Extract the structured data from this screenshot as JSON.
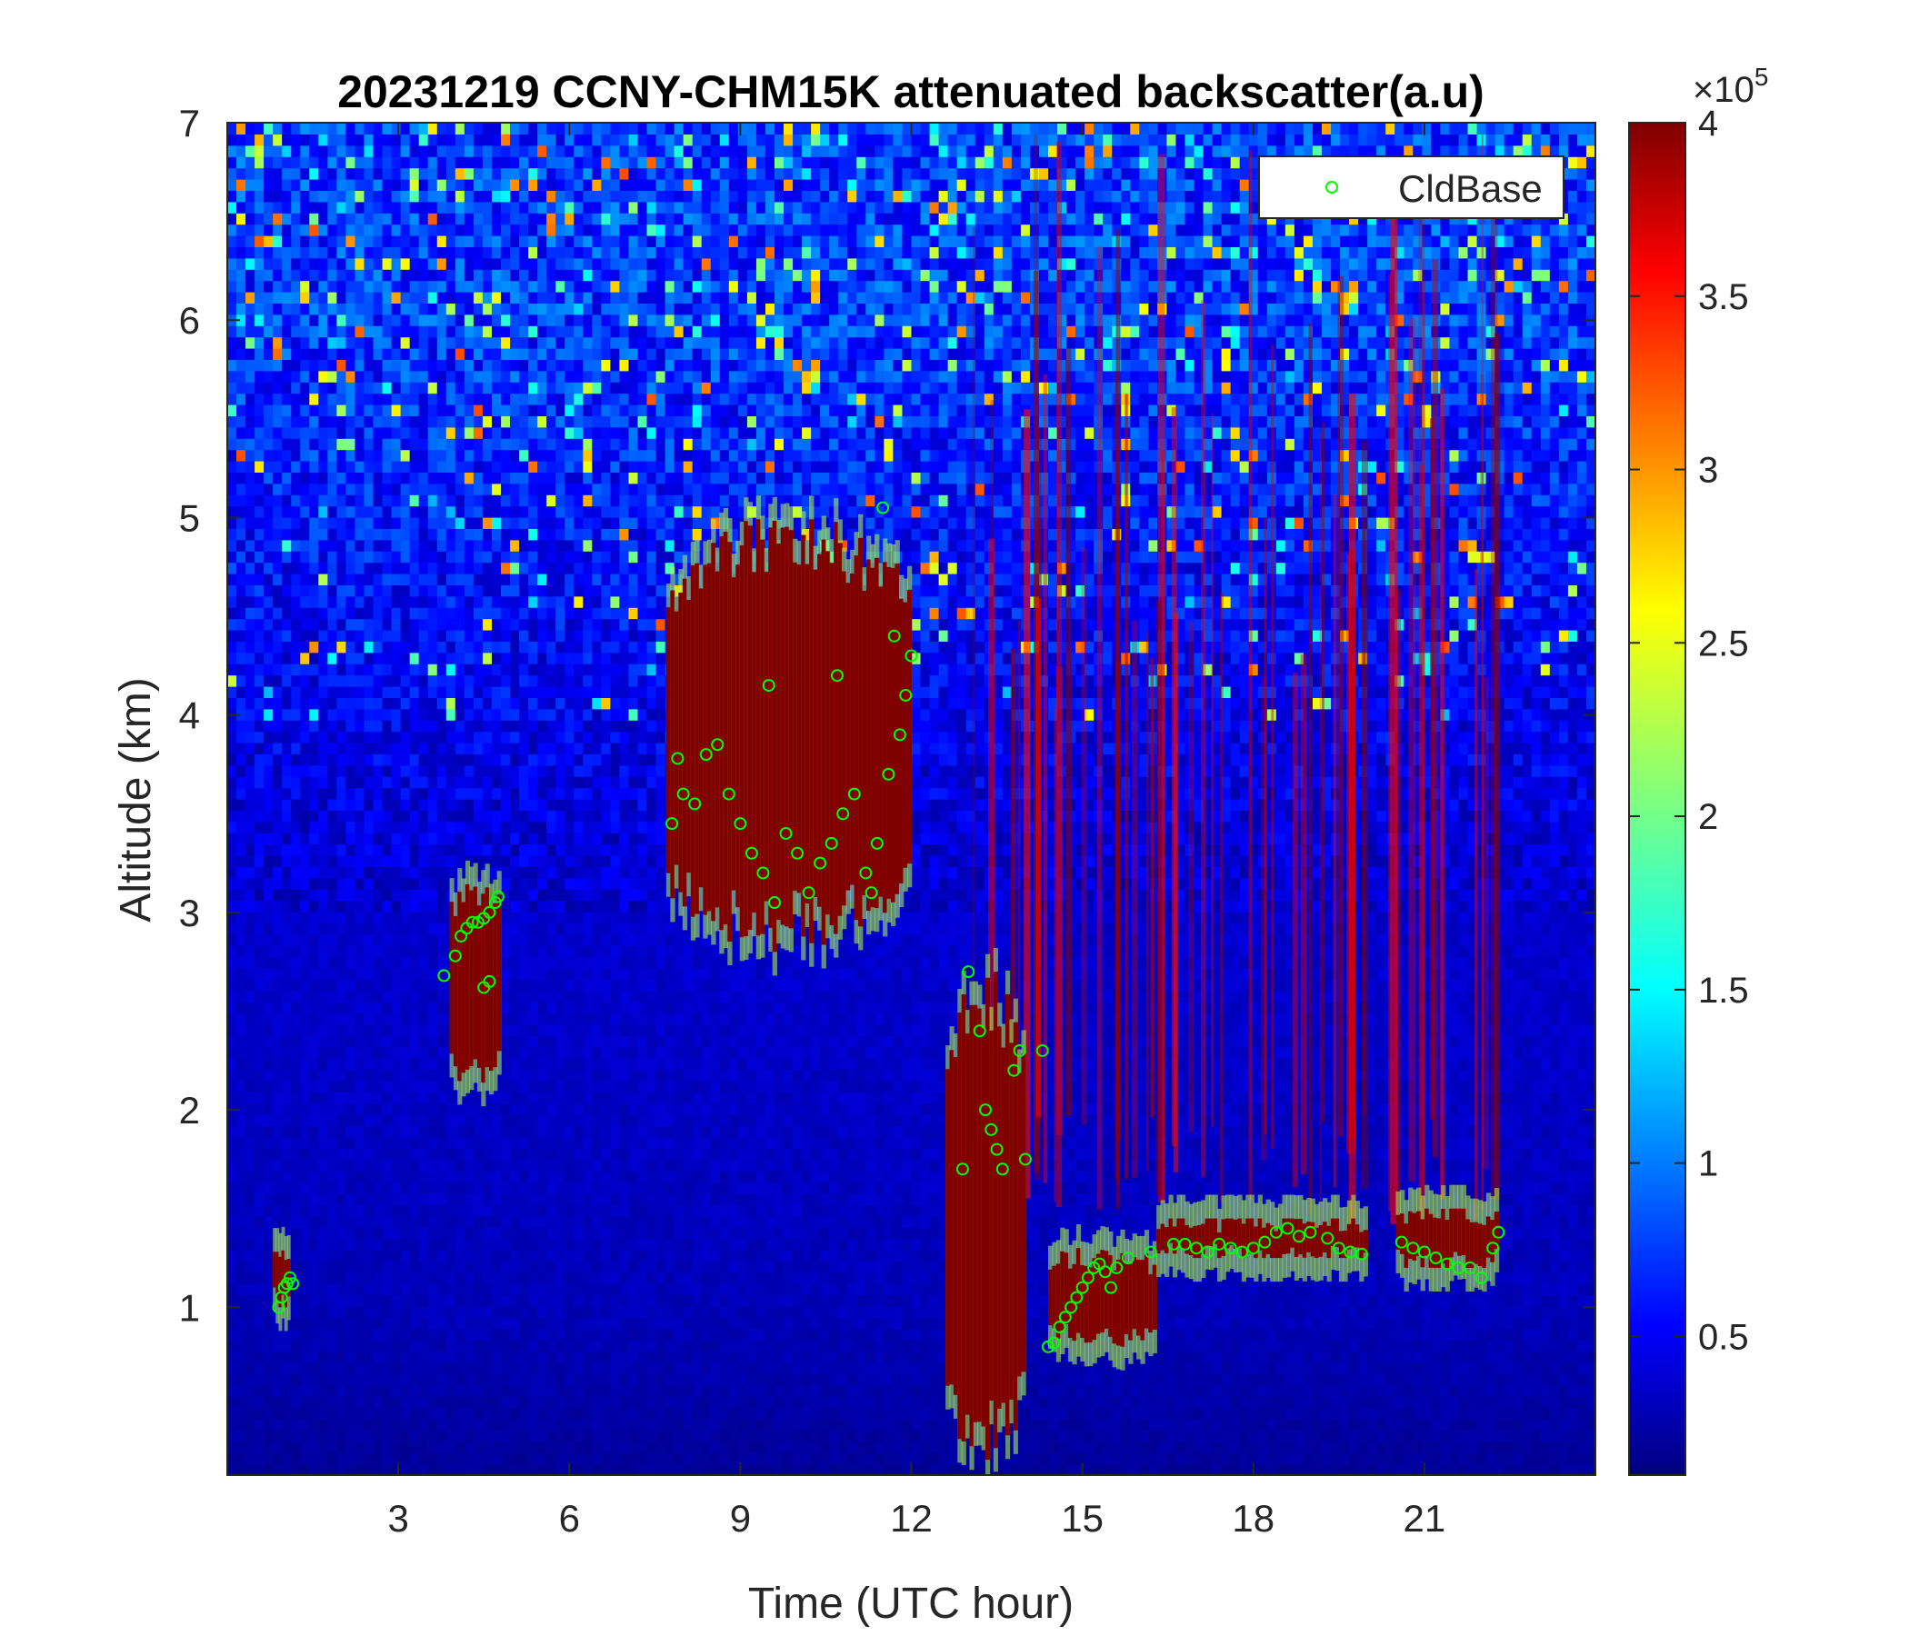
{
  "chart_data": {
    "type": "heatmap",
    "title": "20231219 CCNY-CHM15K attenuated backscatter(a.u)",
    "xlabel": "Time (UTC hour)",
    "ylabel": "Altitude (km)",
    "xlim": [
      0,
      24
    ],
    "ylim": [
      0.15,
      7
    ],
    "xticks": [
      3,
      6,
      9,
      12,
      15,
      18,
      21
    ],
    "yticks": [
      1,
      2,
      3,
      4,
      5,
      6,
      7
    ],
    "colorbar": {
      "colormap": "jet",
      "clim": [
        10000,
        400000
      ],
      "ticks": [
        0.5,
        1,
        1.5,
        2,
        2.5,
        3,
        3.5,
        4
      ],
      "exponent_label": "×10",
      "exponent_power": "5"
    },
    "legend": {
      "position": "top-right",
      "entries": [
        "CldBase"
      ]
    },
    "background": {
      "value_near_surface": 20000,
      "value_mid": 40000,
      "value_upper_noise": 80000
    },
    "cloud_layers": [
      {
        "t_start": 0.8,
        "t_end": 1.1,
        "base_km": 1.0,
        "top_km": 1.3,
        "value": 400000
      },
      {
        "t_start": 3.9,
        "t_end": 4.8,
        "base_km": 2.1,
        "top_km": 3.2,
        "value": 400000
      },
      {
        "t_start": 7.7,
        "t_end": 12.0,
        "base_km": 2.8,
        "top_km": 5.0,
        "value": 400000
      },
      {
        "t_start": 12.6,
        "t_end": 14.0,
        "base_km": 0.2,
        "top_km": 2.7,
        "value": 400000
      },
      {
        "t_start": 14.4,
        "t_end": 16.3,
        "base_km": 0.8,
        "top_km": 1.3,
        "value": 400000
      },
      {
        "t_start": 16.3,
        "t_end": 20.0,
        "base_km": 1.25,
        "top_km": 1.45,
        "value": 400000
      },
      {
        "t_start": 20.5,
        "t_end": 22.3,
        "base_km": 1.2,
        "top_km": 1.5,
        "value": 400000
      }
    ],
    "series": [
      {
        "name": "CldBase",
        "marker": "circle",
        "color": "#00ff00",
        "x": [
          0.9,
          0.95,
          1.0,
          1.05,
          1.1,
          1.15,
          3.8,
          4.0,
          4.1,
          4.2,
          4.3,
          4.4,
          4.5,
          4.6,
          4.7,
          4.75,
          4.5,
          4.6,
          7.8,
          7.9,
          8.0,
          8.2,
          8.4,
          8.6,
          8.8,
          9.0,
          9.2,
          9.4,
          9.6,
          9.8,
          10.0,
          10.2,
          10.4,
          10.6,
          10.8,
          11.0,
          11.2,
          11.4,
          11.6,
          11.8,
          11.9,
          12.0,
          11.7,
          11.5,
          10.7,
          9.5,
          11.3,
          13.0,
          13.2,
          13.3,
          13.4,
          13.5,
          13.6,
          13.8,
          13.9,
          14.0,
          14.3,
          12.9,
          14.4,
          14.5,
          14.6,
          14.7,
          14.8,
          14.9,
          15.0,
          15.1,
          15.2,
          15.3,
          15.4,
          15.5,
          15.6,
          15.8,
          16.2,
          16.6,
          16.8,
          17.0,
          17.2,
          17.4,
          17.6,
          17.8,
          18.0,
          18.2,
          18.4,
          18.6,
          18.8,
          19.0,
          19.3,
          19.5,
          19.7,
          19.9,
          20.6,
          20.8,
          21.0,
          21.2,
          21.4,
          21.6,
          21.8,
          22.0,
          22.2,
          22.3
        ],
        "y": [
          1.0,
          1.05,
          1.1,
          1.12,
          1.15,
          1.12,
          2.68,
          2.78,
          2.88,
          2.92,
          2.95,
          2.95,
          2.97,
          3.0,
          3.05,
          3.08,
          2.62,
          2.65,
          3.45,
          3.78,
          3.6,
          3.55,
          3.8,
          3.85,
          3.6,
          3.45,
          3.3,
          3.2,
          3.05,
          3.4,
          3.3,
          3.1,
          3.25,
          3.35,
          3.5,
          3.6,
          3.2,
          3.35,
          3.7,
          3.9,
          4.1,
          4.3,
          4.4,
          5.05,
          4.2,
          4.15,
          3.1,
          2.7,
          2.4,
          2.0,
          1.9,
          1.8,
          1.7,
          2.2,
          2.3,
          1.75,
          2.3,
          1.7,
          0.8,
          0.82,
          0.9,
          0.95,
          1.0,
          1.05,
          1.1,
          1.15,
          1.2,
          1.22,
          1.18,
          1.1,
          1.2,
          1.25,
          1.28,
          1.32,
          1.32,
          1.3,
          1.28,
          1.32,
          1.3,
          1.28,
          1.3,
          1.33,
          1.38,
          1.4,
          1.36,
          1.38,
          1.35,
          1.3,
          1.28,
          1.27,
          1.33,
          1.3,
          1.28,
          1.25,
          1.22,
          1.2,
          1.2,
          1.15,
          1.3,
          1.38
        ]
      }
    ]
  }
}
